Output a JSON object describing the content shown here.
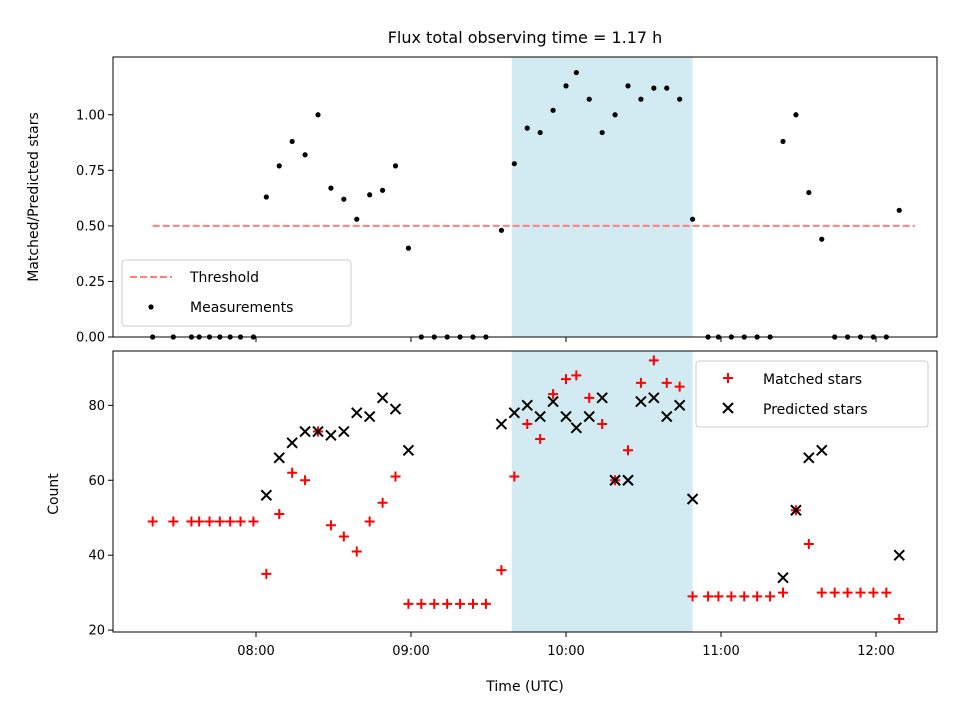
{
  "figure": {
    "title": "Flux total observing time = 1.17 h",
    "xlabel": "Time (UTC)",
    "x_ticks": [
      "08:00",
      "09:00",
      "10:00",
      "11:00",
      "12:00"
    ],
    "highlight_span": [
      "09:39",
      "10:49"
    ],
    "colors": {
      "threshold": "#ff7f7f",
      "measurements": "#000000",
      "matched": "#ff0000",
      "predicted": "#000000",
      "highlight": "#add8e6"
    }
  },
  "chart_data": [
    {
      "type": "scatter",
      "panel": "top",
      "ylabel": "Matched/Predicted stars",
      "ylim": [
        0,
        1.26
      ],
      "y_ticks": [
        "0.00",
        "0.25",
        "0.50",
        "0.75",
        "1.00"
      ],
      "legend_placement": "lower-left",
      "threshold": {
        "name": "Threshold",
        "value": 0.5,
        "x_range": [
          "07:20",
          "12:15"
        ]
      },
      "series": [
        {
          "name": "Measurements",
          "marker": "dot",
          "points": [
            [
              "07:20",
              0.0
            ],
            [
              "07:28",
              0.0
            ],
            [
              "07:35",
              0.0
            ],
            [
              "07:38",
              0.0
            ],
            [
              "07:42",
              0.0
            ],
            [
              "07:46",
              0.0
            ],
            [
              "07:50",
              0.0
            ],
            [
              "07:54",
              0.0
            ],
            [
              "07:59",
              0.0
            ],
            [
              "08:04",
              0.63
            ],
            [
              "08:09",
              0.77
            ],
            [
              "08:14",
              0.88
            ],
            [
              "08:19",
              0.82
            ],
            [
              "08:24",
              1.0
            ],
            [
              "08:29",
              0.67
            ],
            [
              "08:34",
              0.62
            ],
            [
              "08:39",
              0.53
            ],
            [
              "08:44",
              0.64
            ],
            [
              "08:49",
              0.66
            ],
            [
              "08:54",
              0.77
            ],
            [
              "08:59",
              0.4
            ],
            [
              "09:04",
              0.0
            ],
            [
              "09:09",
              0.0
            ],
            [
              "09:14",
              0.0
            ],
            [
              "09:19",
              0.0
            ],
            [
              "09:24",
              0.0
            ],
            [
              "09:29",
              0.0
            ],
            [
              "09:35",
              0.48
            ],
            [
              "09:40",
              0.78
            ],
            [
              "09:45",
              0.94
            ],
            [
              "09:50",
              0.92
            ],
            [
              "09:55",
              1.02
            ],
            [
              "10:00",
              1.13
            ],
            [
              "10:04",
              1.19
            ],
            [
              "10:09",
              1.07
            ],
            [
              "10:14",
              0.92
            ],
            [
              "10:19",
              1.0
            ],
            [
              "10:24",
              1.13
            ],
            [
              "10:29",
              1.07
            ],
            [
              "10:34",
              1.12
            ],
            [
              "10:39",
              1.12
            ],
            [
              "10:44",
              1.07
            ],
            [
              "10:49",
              0.53
            ],
            [
              "10:55",
              0.0
            ],
            [
              "10:59",
              0.0
            ],
            [
              "11:04",
              0.0
            ],
            [
              "11:09",
              0.0
            ],
            [
              "11:14",
              0.0
            ],
            [
              "11:19",
              0.0
            ],
            [
              "11:24",
              0.88
            ],
            [
              "11:29",
              1.0
            ],
            [
              "11:34",
              0.65
            ],
            [
              "11:39",
              0.44
            ],
            [
              "11:44",
              0.0
            ],
            [
              "11:49",
              0.0
            ],
            [
              "11:54",
              0.0
            ],
            [
              "11:59",
              0.0
            ],
            [
              "12:04",
              0.0
            ],
            [
              "12:09",
              0.57
            ]
          ]
        }
      ]
    },
    {
      "type": "scatter",
      "panel": "bottom",
      "ylabel": "Count",
      "ylim": [
        19.5,
        94.5
      ],
      "y_ticks": [
        "20",
        "40",
        "60",
        "80"
      ],
      "legend_placement": "upper-right",
      "series": [
        {
          "name": "Matched stars",
          "marker": "plus",
          "points": [
            [
              "07:20",
              49
            ],
            [
              "07:28",
              49
            ],
            [
              "07:35",
              49
            ],
            [
              "07:38",
              49
            ],
            [
              "07:42",
              49
            ],
            [
              "07:46",
              49
            ],
            [
              "07:50",
              49
            ],
            [
              "07:54",
              49
            ],
            [
              "07:59",
              49
            ],
            [
              "08:04",
              35
            ],
            [
              "08:09",
              51
            ],
            [
              "08:14",
              62
            ],
            [
              "08:19",
              60
            ],
            [
              "08:24",
              73
            ],
            [
              "08:29",
              48
            ],
            [
              "08:34",
              45
            ],
            [
              "08:39",
              41
            ],
            [
              "08:44",
              49
            ],
            [
              "08:49",
              54
            ],
            [
              "08:54",
              61
            ],
            [
              "08:59",
              27
            ],
            [
              "09:04",
              27
            ],
            [
              "09:09",
              27
            ],
            [
              "09:14",
              27
            ],
            [
              "09:19",
              27
            ],
            [
              "09:24",
              27
            ],
            [
              "09:29",
              27
            ],
            [
              "09:35",
              36
            ],
            [
              "09:40",
              61
            ],
            [
              "09:45",
              75
            ],
            [
              "09:50",
              71
            ],
            [
              "09:55",
              83
            ],
            [
              "10:00",
              87
            ],
            [
              "10:04",
              88
            ],
            [
              "10:09",
              82
            ],
            [
              "10:14",
              75
            ],
            [
              "10:19",
              60
            ],
            [
              "10:24",
              68
            ],
            [
              "10:29",
              86
            ],
            [
              "10:34",
              92
            ],
            [
              "10:39",
              86
            ],
            [
              "10:44",
              85
            ],
            [
              "10:49",
              29
            ],
            [
              "10:55",
              29
            ],
            [
              "10:59",
              29
            ],
            [
              "11:04",
              29
            ],
            [
              "11:09",
              29
            ],
            [
              "11:14",
              29
            ],
            [
              "11:19",
              29
            ],
            [
              "11:24",
              30
            ],
            [
              "11:29",
              52
            ],
            [
              "11:34",
              43
            ],
            [
              "11:39",
              30
            ],
            [
              "11:44",
              30
            ],
            [
              "11:49",
              30
            ],
            [
              "11:54",
              30
            ],
            [
              "11:59",
              30
            ],
            [
              "12:04",
              30
            ],
            [
              "12:09",
              23
            ]
          ]
        },
        {
          "name": "Predicted stars",
          "marker": "x",
          "points": [
            [
              "08:04",
              56
            ],
            [
              "08:09",
              66
            ],
            [
              "08:14",
              70
            ],
            [
              "08:19",
              73
            ],
            [
              "08:24",
              73
            ],
            [
              "08:29",
              72
            ],
            [
              "08:34",
              73
            ],
            [
              "08:39",
              78
            ],
            [
              "08:44",
              77
            ],
            [
              "08:49",
              82
            ],
            [
              "08:54",
              79
            ],
            [
              "08:59",
              68
            ],
            [
              "09:35",
              75
            ],
            [
              "09:40",
              78
            ],
            [
              "09:45",
              80
            ],
            [
              "09:50",
              77
            ],
            [
              "09:55",
              81
            ],
            [
              "10:00",
              77
            ],
            [
              "10:04",
              74
            ],
            [
              "10:09",
              77
            ],
            [
              "10:14",
              82
            ],
            [
              "10:19",
              60
            ],
            [
              "10:24",
              60
            ],
            [
              "10:29",
              81
            ],
            [
              "10:34",
              82
            ],
            [
              "10:39",
              77
            ],
            [
              "10:44",
              80
            ],
            [
              "10:49",
              55
            ],
            [
              "11:24",
              34
            ],
            [
              "11:29",
              52
            ],
            [
              "11:34",
              66
            ],
            [
              "11:39",
              68
            ],
            [
              "12:09",
              40
            ]
          ]
        }
      ]
    }
  ]
}
